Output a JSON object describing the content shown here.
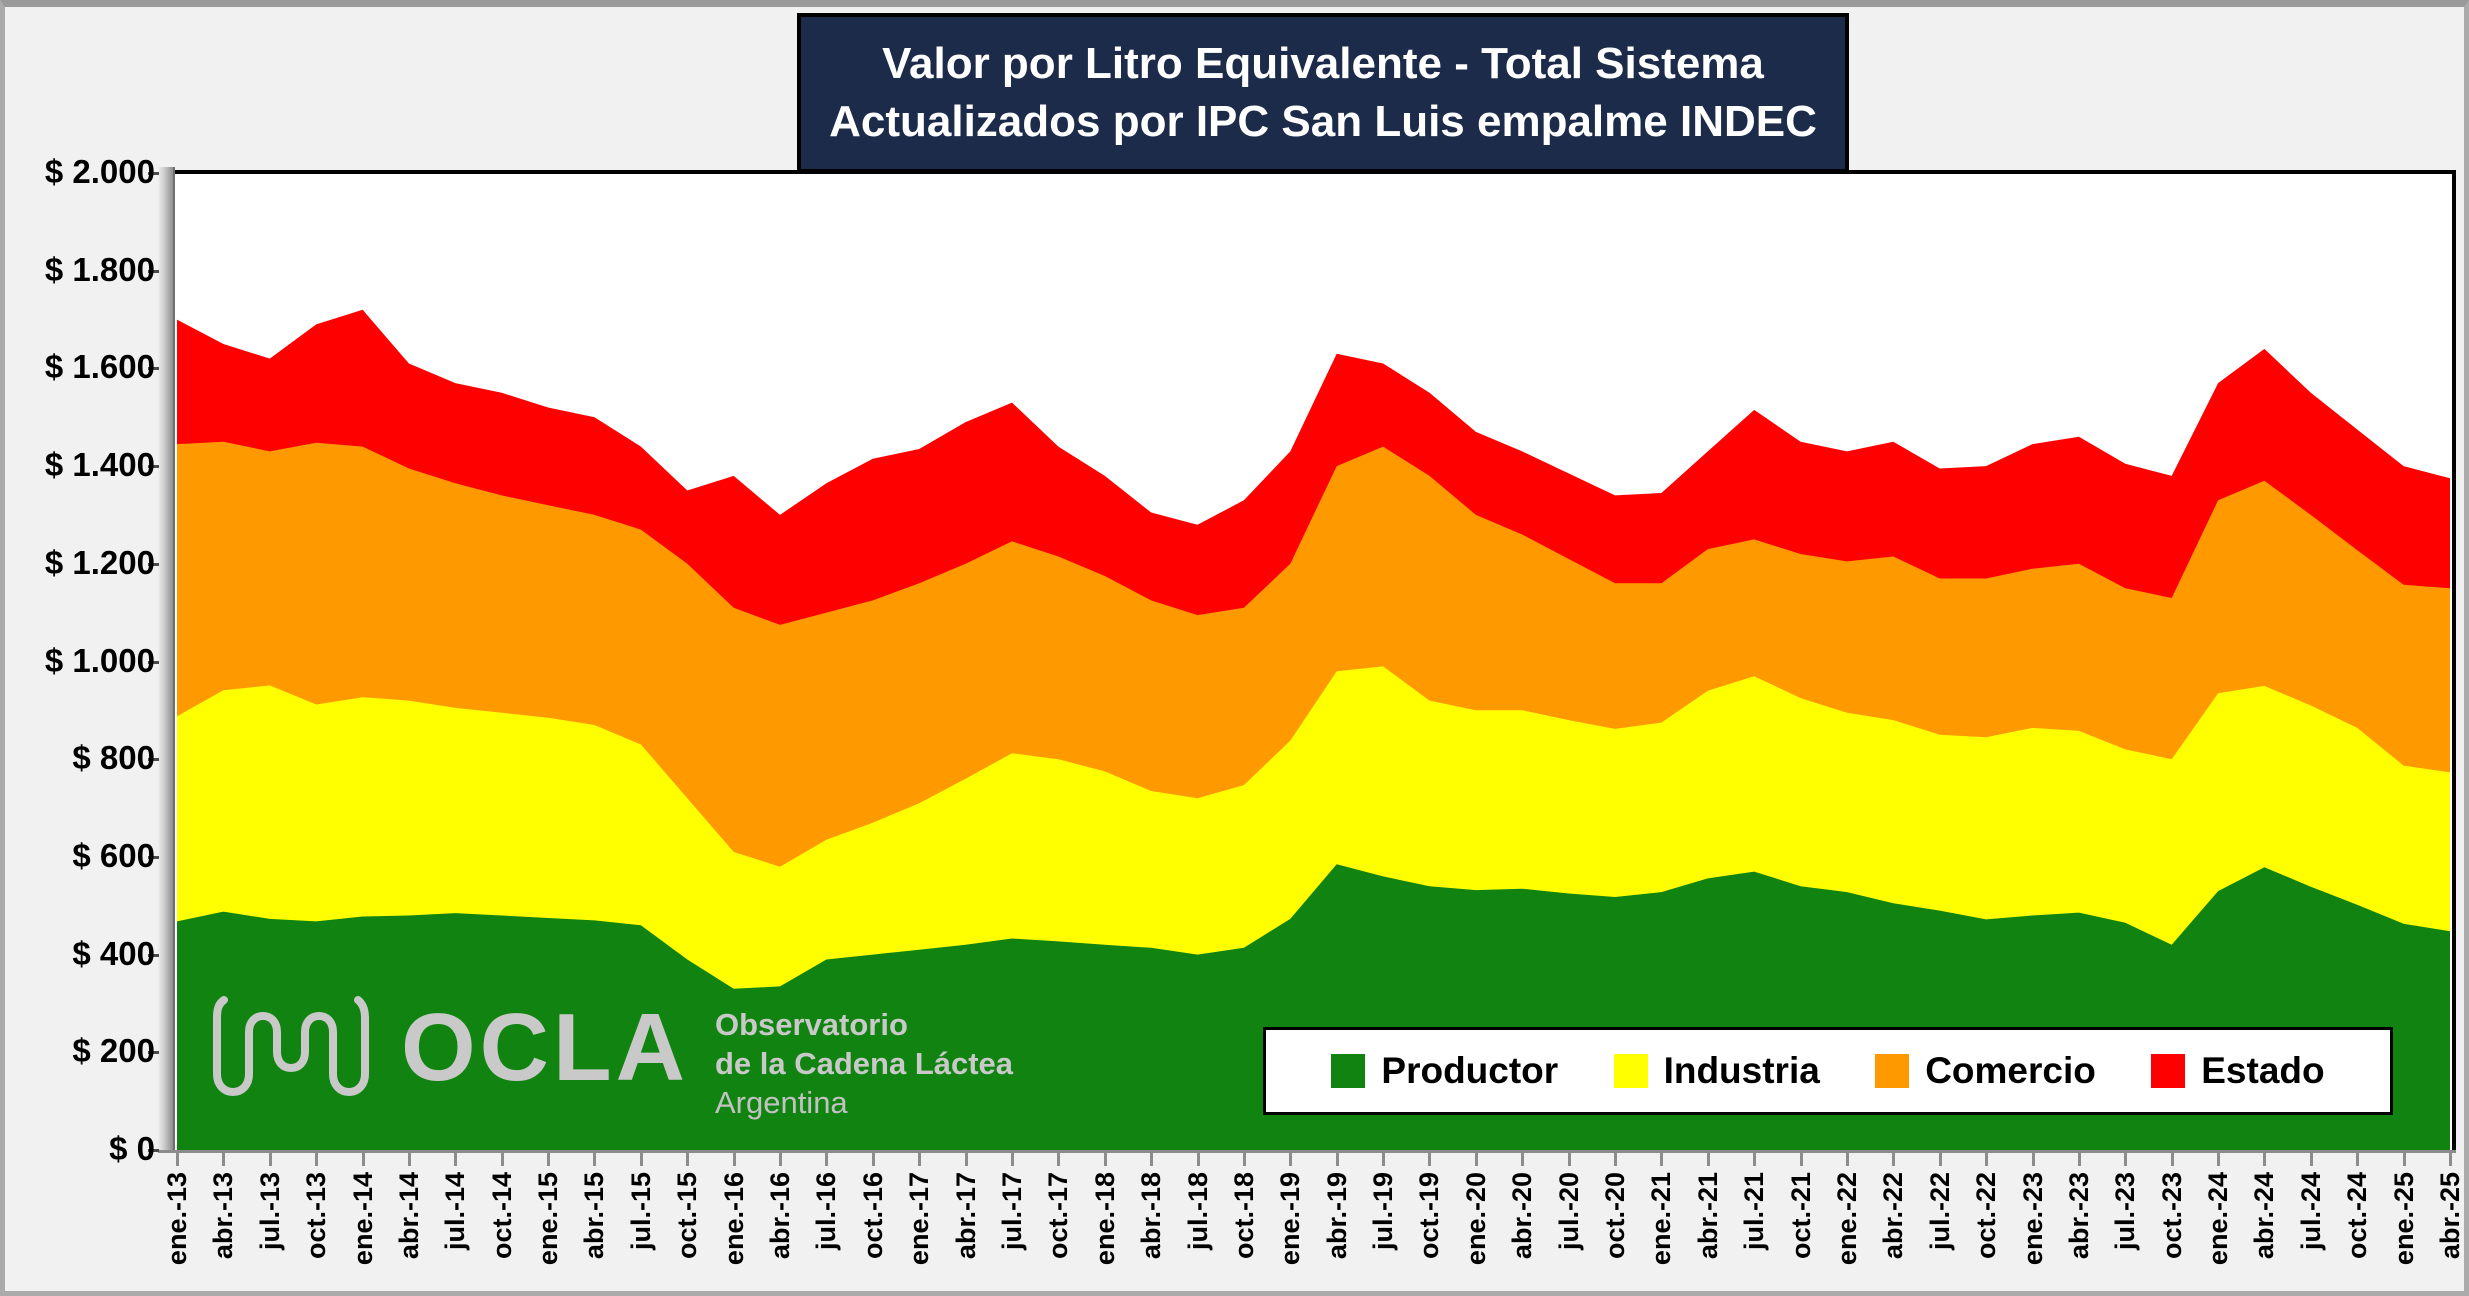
{
  "title": {
    "line1": "Valor por Litro Equivalente - Total Sistema",
    "line2": "Actualizados por IPC San Luis empalme INDEC"
  },
  "logo": {
    "wordmark": "OCLA",
    "line1": "Observatorio",
    "line2": "de la Cadena Láctea",
    "line3": "Argentina"
  },
  "colors": {
    "background": "#F1F1F1",
    "plot_background": "#FFFFFF",
    "title_background": "#1C2B4A",
    "title_text": "#FFFFFF",
    "axis_text": "#000000",
    "productor": "#118311",
    "industria": "#FFFF00",
    "comercio": "#FF9900",
    "estado": "#FF0000",
    "logo_gray": "#C9C9C9"
  },
  "chart_data": {
    "type": "area",
    "stacked": true,
    "title": "Valor por Litro Equivalente - Total Sistema",
    "subtitle": "Actualizados por IPC San Luis empalme INDEC",
    "xlabel": "",
    "ylabel": "",
    "ylim": [
      0,
      2000
    ],
    "grid": false,
    "legend_position": "bottom-right-inside",
    "x_label_rotation": -90,
    "y_ticks": [
      "$ 0",
      "$ 200",
      "$ 400",
      "$ 600",
      "$ 800",
      "$ 1.000",
      "$ 1.200",
      "$ 1.400",
      "$ 1.600",
      "$ 1.800",
      "$ 2.000"
    ],
    "categories": [
      "ene.-13",
      "abr.-13",
      "jul.-13",
      "oct.-13",
      "ene.-14",
      "abr.-14",
      "jul.-14",
      "oct.-14",
      "ene.-15",
      "abr.-15",
      "jul.-15",
      "oct.-15",
      "ene.-16",
      "abr.-16",
      "jul.-16",
      "oct.-16",
      "ene.-17",
      "abr.-17",
      "jul.-17",
      "oct.-17",
      "ene.-18",
      "abr.-18",
      "jul.-18",
      "oct.-18",
      "ene.-19",
      "abr.-19",
      "jul.-19",
      "oct.-19",
      "ene.-20",
      "abr.-20",
      "jul.-20",
      "oct.-20",
      "ene.-21",
      "abr.-21",
      "jul.-21",
      "oct.-21",
      "ene.-22",
      "abr.-22",
      "jul.-22",
      "oct.-22",
      "ene.-23",
      "abr.-23",
      "jul.-23",
      "oct.-23",
      "ene.-24",
      "abr.-24",
      "jul.-24",
      "oct.-24",
      "ene.-25",
      "abr.-25"
    ],
    "series": [
      {
        "name": "Productor",
        "color": "#118311",
        "values": [
          468,
          488,
          473,
          468,
          478,
          480,
          485,
          480,
          475,
          470,
          460,
          390,
          330,
          335,
          390,
          400,
          410,
          420,
          433,
          427,
          420,
          414,
          400,
          414,
          473,
          585,
          560,
          540,
          532,
          535,
          525,
          518,
          528,
          556,
          570,
          540,
          528,
          505,
          490,
          472,
          480,
          486,
          465,
          420,
          530,
          579,
          539,
          502,
          463,
          448
        ]
      },
      {
        "name": "Industria",
        "color": "#FFFF00",
        "values": [
          420,
          453,
          478,
          444,
          449,
          440,
          420,
          415,
          410,
          400,
          370,
          330,
          280,
          245,
          245,
          270,
          300,
          340,
          379,
          373,
          355,
          321,
          320,
          333,
          365,
          395,
          430,
          380,
          368,
          365,
          355,
          344,
          347,
          384,
          400,
          385,
          367,
          375,
          360,
          373,
          384,
          372,
          355,
          380,
          405,
          371,
          371,
          362,
          324,
          325
        ]
      },
      {
        "name": "Comercio",
        "color": "#FF9900",
        "values": [
          557,
          509,
          479,
          536,
          513,
          475,
          460,
          445,
          435,
          430,
          440,
          480,
          500,
          495,
          465,
          455,
          450,
          440,
          434,
          415,
          400,
          390,
          375,
          363,
          362,
          420,
          450,
          460,
          400,
          360,
          330,
          298,
          285,
          290,
          280,
          295,
          310,
          335,
          320,
          325,
          326,
          342,
          330,
          330,
          395,
          420,
          390,
          364,
          370,
          377
        ]
      },
      {
        "name": "Estado",
        "color": "#FF0000",
        "values": [
          255,
          200,
          190,
          242,
          280,
          215,
          205,
          210,
          200,
          200,
          170,
          150,
          270,
          225,
          265,
          290,
          275,
          290,
          284,
          225,
          205,
          180,
          185,
          220,
          230,
          230,
          170,
          170,
          170,
          170,
          175,
          180,
          185,
          200,
          265,
          230,
          225,
          235,
          225,
          230,
          255,
          260,
          255,
          250,
          240,
          270,
          250,
          247,
          243,
          225
        ]
      }
    ]
  }
}
